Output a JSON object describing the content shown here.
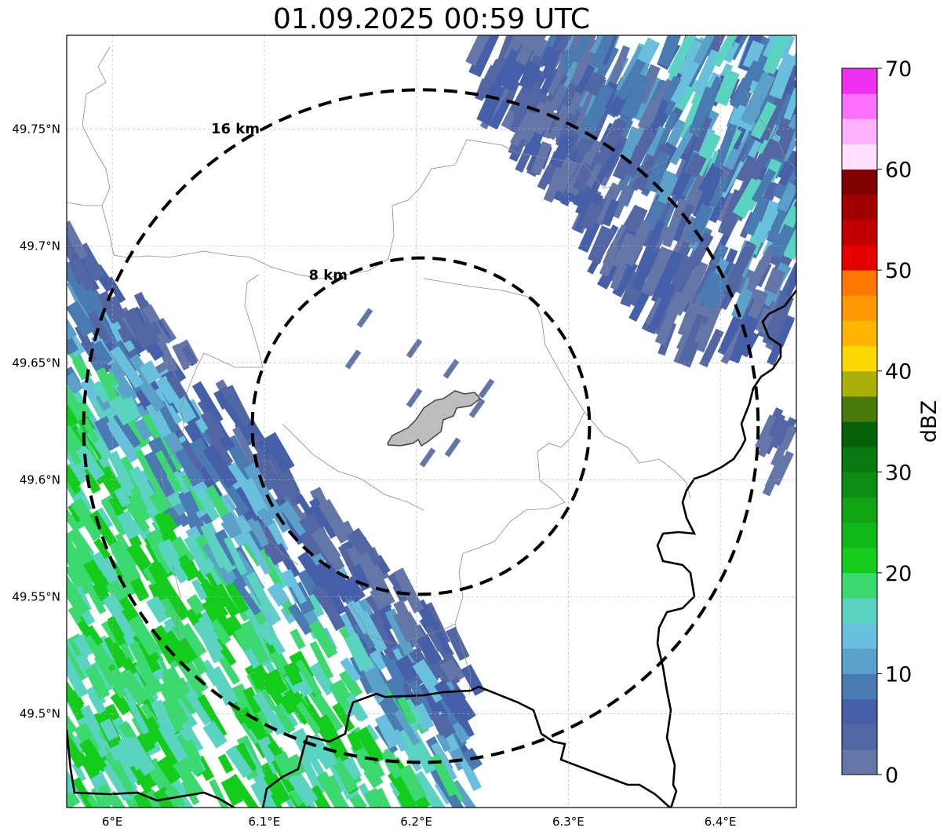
{
  "title": "01.09.2025 00:59 UTC",
  "map": {
    "lon_range": [
      5.97,
      6.45
    ],
    "lat_range": [
      49.46,
      49.79
    ],
    "center": {
      "lon": 6.203,
      "lat": 49.623
    },
    "x_ticks": [
      {
        "value": 6.0,
        "label": "6°E"
      },
      {
        "value": 6.1,
        "label": "6.1°E"
      },
      {
        "value": 6.2,
        "label": "6.2°E"
      },
      {
        "value": 6.3,
        "label": "6.3°E"
      },
      {
        "value": 6.4,
        "label": "6.4°E"
      }
    ],
    "y_ticks": [
      {
        "value": 49.5,
        "label": "49.5°N"
      },
      {
        "value": 49.55,
        "label": "49.55°N"
      },
      {
        "value": 49.6,
        "label": "49.6°N"
      },
      {
        "value": 49.65,
        "label": "49.65°N"
      },
      {
        "value": 49.7,
        "label": "49.7°N"
      },
      {
        "value": 49.75,
        "label": "49.75°N"
      }
    ],
    "grid": true,
    "range_rings": [
      {
        "radius_km": 8,
        "label": "8 km"
      },
      {
        "radius_km": 16,
        "label": "16 km"
      }
    ],
    "site_marker": "grey-polygon"
  },
  "colorbar": {
    "title": "dBZ",
    "min": 0,
    "max": 70,
    "ticks": [
      {
        "value": 0,
        "label": "0"
      },
      {
        "value": 10,
        "label": "10"
      },
      {
        "value": 20,
        "label": "20"
      },
      {
        "value": 30,
        "label": "30"
      },
      {
        "value": 40,
        "label": "40"
      },
      {
        "value": 50,
        "label": "50"
      },
      {
        "value": 60,
        "label": "60"
      },
      {
        "value": 70,
        "label": "70"
      }
    ],
    "colors": [
      "#6475a8",
      "#5266a4",
      "#4560a8",
      "#4a7ab2",
      "#5aa0c8",
      "#68c0dc",
      "#5ad4c0",
      "#3cd870",
      "#14cc1c",
      "#10b818",
      "#10a414",
      "#0c8c10",
      "#087810",
      "#066008",
      "#4a7a0a",
      "#aab00a",
      "#ffd800",
      "#ffb400",
      "#ff9800",
      "#ff7800",
      "#e40000",
      "#c00000",
      "#a00000",
      "#800000",
      "#ffe0ff",
      "#ffb0ff",
      "#ff70ff",
      "#f030f0"
    ]
  }
}
